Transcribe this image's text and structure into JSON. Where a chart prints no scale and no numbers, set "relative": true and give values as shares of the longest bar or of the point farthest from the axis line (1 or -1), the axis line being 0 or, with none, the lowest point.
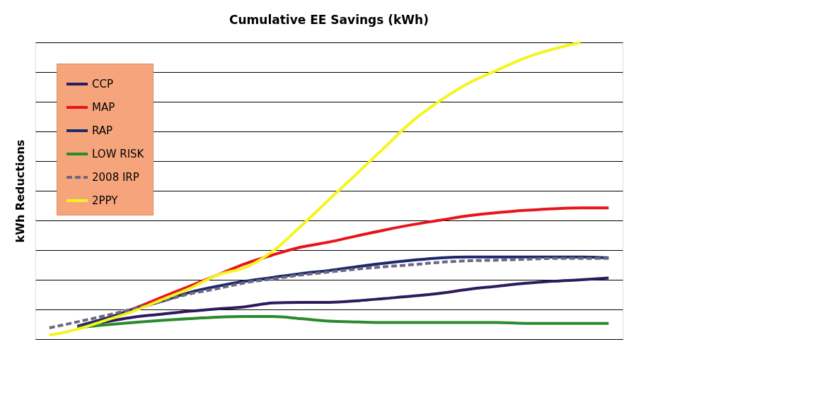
{
  "chart_data": {
    "type": "line",
    "title": "Cumulative EE Savings (kWh)",
    "ylabel": "kWh Reductions",
    "relative": true,
    "grid": "y",
    "legend": "top left",
    "marker": "none",
    "categories": [
      null,
      null,
      null,
      null,
      null,
      null,
      null,
      null,
      null,
      null,
      null,
      null,
      null,
      null,
      null,
      null,
      null,
      null,
      null,
      null,
      null
    ],
    "series": [
      {
        "name": "CCP",
        "color": "#2e1a5e",
        "line_style": "solid",
        "values": [
          null,
          0.043,
          0.058,
          0.074,
          0.084,
          0.094,
          0.102,
          0.109,
          0.122,
          0.124,
          0.124,
          0.129,
          0.137,
          0.145,
          0.155,
          0.168,
          0.178,
          0.188,
          0.195,
          0.2,
          0.206
        ]
      },
      {
        "name": "MAP",
        "color": "#e8141b",
        "line_style": "solid",
        "values": [
          null,
          0.043,
          0.069,
          0.102,
          0.14,
          0.178,
          0.216,
          0.254,
          0.284,
          0.31,
          0.327,
          0.348,
          0.368,
          0.386,
          0.401,
          0.416,
          0.426,
          0.434,
          0.439,
          0.442,
          0.442
        ]
      },
      {
        "name": "RAP",
        "color": "#1c2a6b",
        "line_style": "solid",
        "values": [
          null,
          0.043,
          0.069,
          0.099,
          0.127,
          0.157,
          0.178,
          0.195,
          0.208,
          0.221,
          0.231,
          0.244,
          0.256,
          0.266,
          0.274,
          0.277,
          0.277,
          0.277,
          0.277,
          0.277,
          0.274
        ]
      },
      {
        "name": "LOW RISK",
        "color": "#2a8a2e",
        "line_style": "solid",
        "values": [
          null,
          0.038,
          0.048,
          0.056,
          0.063,
          0.069,
          0.074,
          0.076,
          0.076,
          0.069,
          0.061,
          0.058,
          0.056,
          0.056,
          0.056,
          0.056,
          0.056,
          0.053,
          0.053,
          0.053,
          0.053
        ]
      },
      {
        "name": "2008 IRP",
        "color": "#6e6880",
        "line_style": "dashed",
        "values": [
          0.038,
          0.058,
          0.079,
          0.102,
          0.127,
          0.152,
          0.17,
          0.19,
          0.203,
          0.216,
          0.226,
          0.236,
          0.244,
          0.251,
          0.259,
          0.264,
          0.266,
          0.269,
          0.272,
          0.272,
          0.272
        ]
      },
      {
        "name": "2PPY",
        "color": "#f5f51e",
        "line_style": "solid",
        "values": [
          0.013,
          0.033,
          0.063,
          0.094,
          0.132,
          0.17,
          0.216,
          0.241,
          0.297,
          0.381,
          0.47,
          0.558,
          0.647,
          0.736,
          0.805,
          0.863,
          0.906,
          0.947,
          0.977,
          1,
          null
        ]
      }
    ]
  }
}
